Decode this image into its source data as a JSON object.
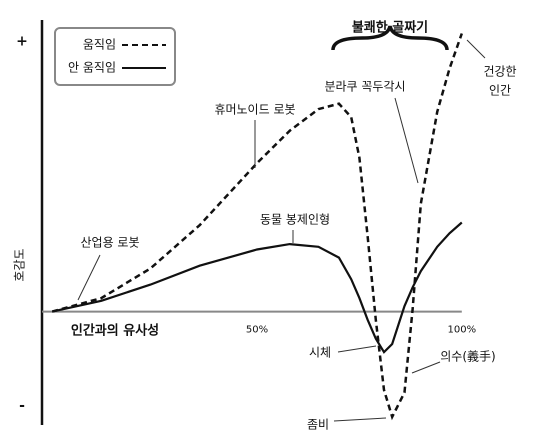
{
  "chart_data": {
    "type": "line",
    "x_label": "인간과의 유사성",
    "y_label": "호감도",
    "x": [
      0,
      12,
      24,
      36,
      50,
      58,
      65,
      70,
      73,
      75,
      77,
      79,
      81,
      83,
      86,
      88,
      90,
      94,
      97,
      100
    ],
    "series": [
      {
        "name": "움직임",
        "color": "#111111",
        "dashed": true,
        "values": [
          0,
          5,
          16,
          32,
          55,
          67,
          75,
          77,
          72,
          57,
          28,
          -3,
          -29,
          -39,
          -30,
          1,
          40,
          74,
          90,
          103
        ]
      },
      {
        "name": "안 움직임",
        "color": "#111111",
        "dashed": false,
        "values": [
          0,
          4,
          10,
          17,
          23,
          25,
          24,
          20,
          12,
          5,
          -3,
          -10,
          -15,
          -12,
          2,
          9,
          15,
          24,
          29,
          33
        ]
      }
    ],
    "xlim": [
      -2,
      102
    ],
    "xticks": [
      {
        "value": 50,
        "label": "50%"
      },
      {
        "value": 100,
        "label": "100%"
      }
    ],
    "ylim": [
      -42,
      108
    ],
    "yticks": [
      {
        "value": 100,
        "label": "+"
      },
      {
        "value": -35,
        "label": "-"
      }
    ],
    "grid": false,
    "legend": "top-left",
    "annotations": [
      {
        "lines": [
          "불쾌한 골짜기"
        ]
      },
      {
        "lines": [
          "건강한",
          "인간"
        ]
      },
      {
        "lines": [
          "분라쿠 꼭두각시"
        ]
      },
      {
        "lines": [
          "휴머노이드 로봇"
        ]
      },
      {
        "lines": [
          "동물 봉제인형"
        ]
      },
      {
        "lines": [
          "산업용 로봇"
        ]
      },
      {
        "lines": [
          "시체"
        ]
      },
      {
        "lines": [
          "의수(義手)"
        ]
      },
      {
        "lines": [
          "좀비"
        ]
      }
    ]
  }
}
